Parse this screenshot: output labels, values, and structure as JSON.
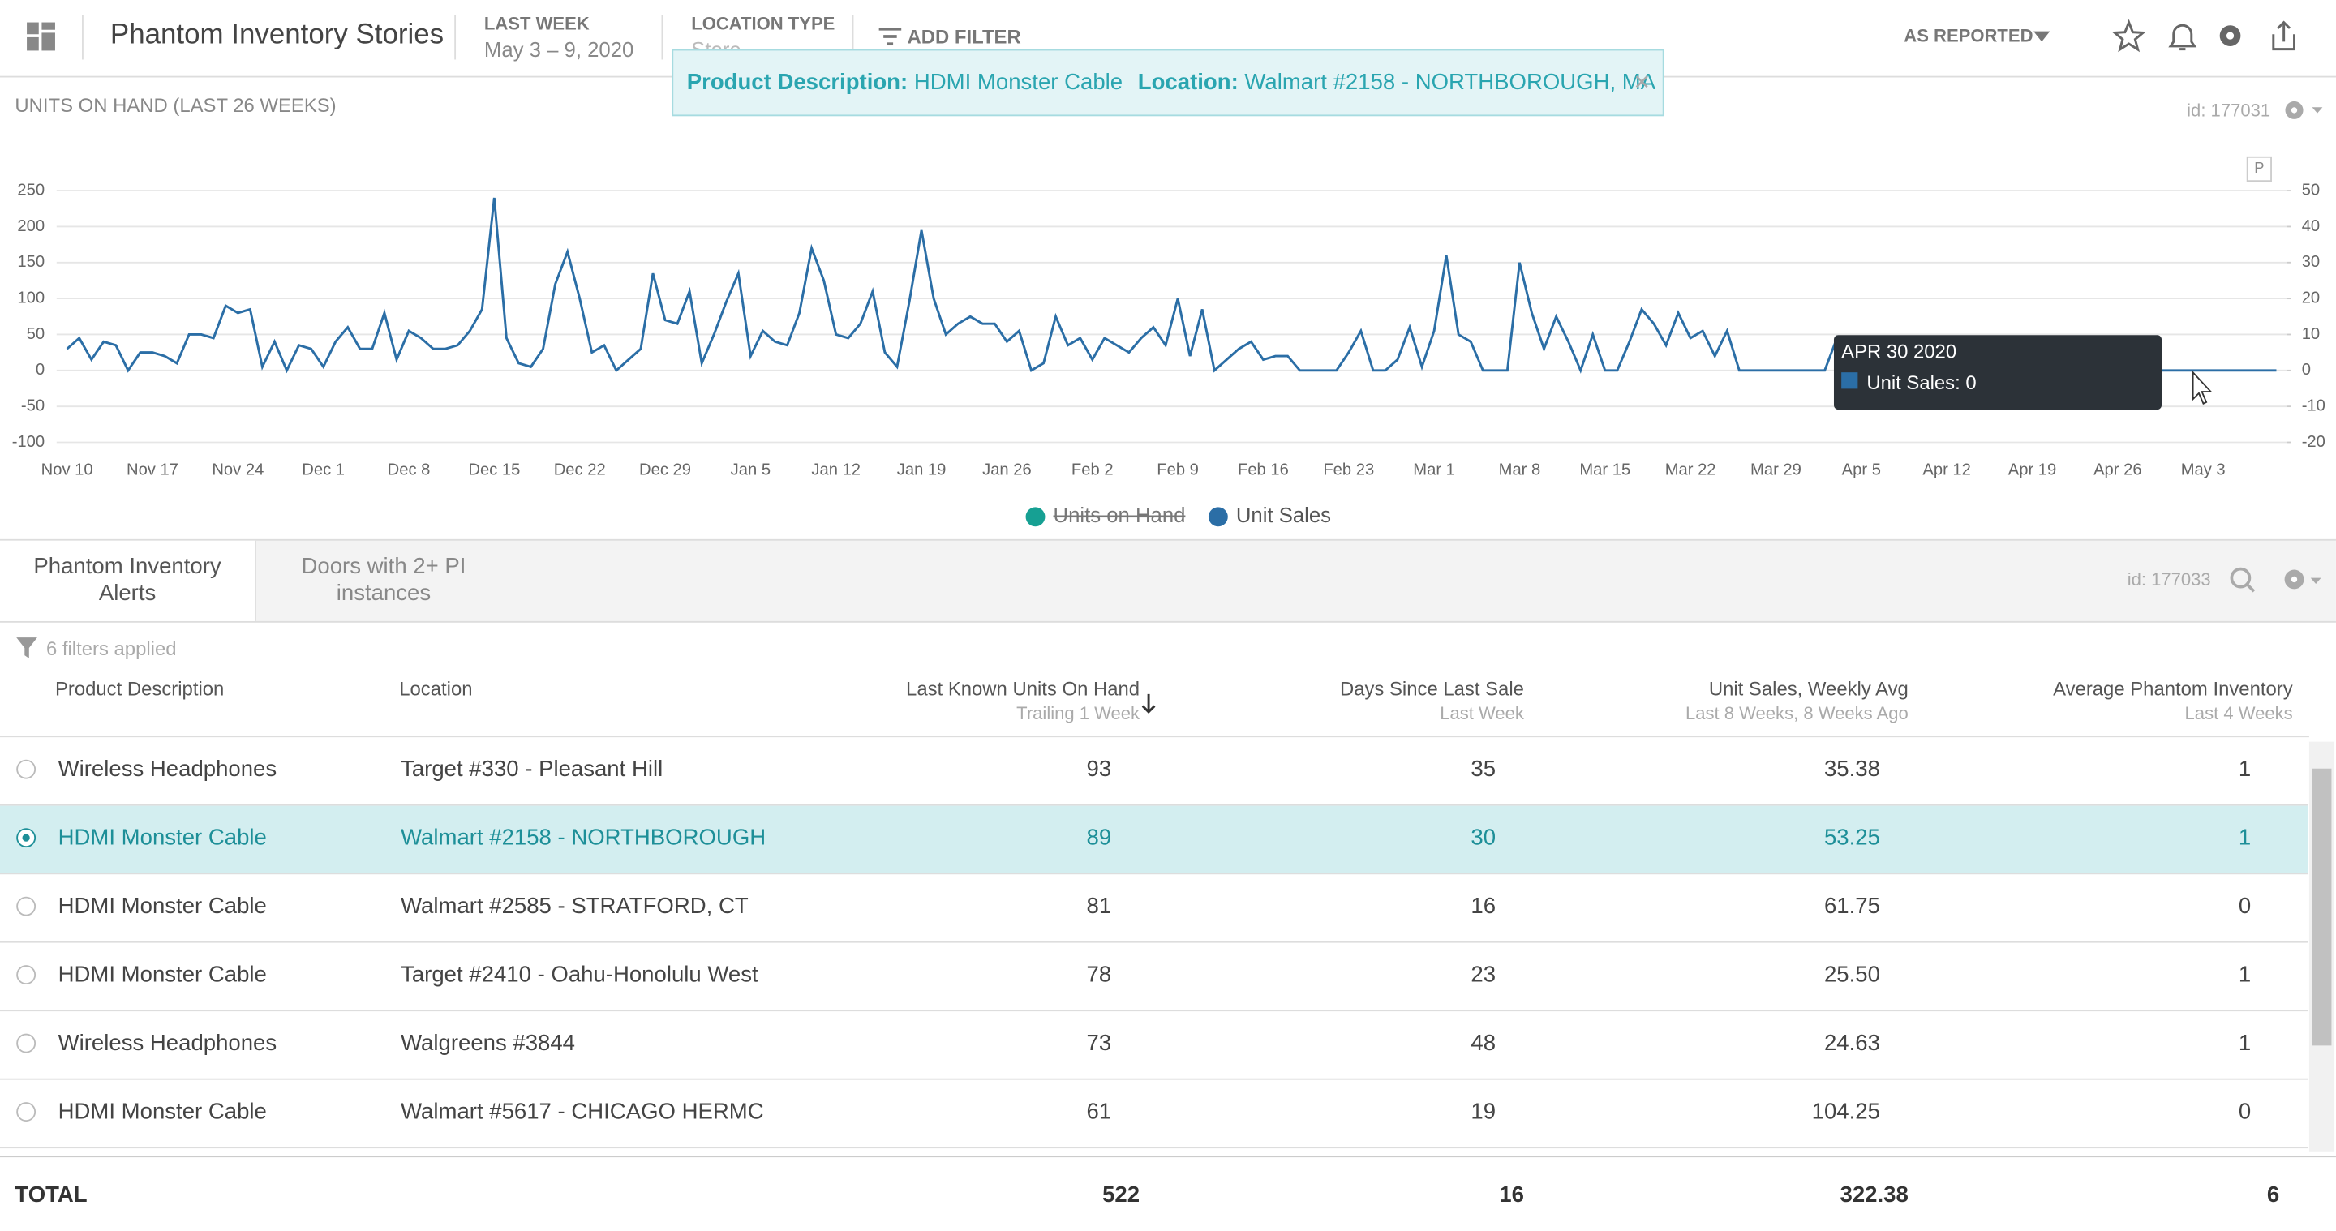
{
  "header": {
    "title": "Phantom Inventory Stories",
    "filters": [
      {
        "label": "LAST WEEK",
        "value": "May 3 – 9, 2020"
      },
      {
        "label": "LOCATION TYPE",
        "value": "Store"
      }
    ],
    "add_filter": "ADD FILTER",
    "reporting": "AS REPORTED"
  },
  "filter_banner": [
    {
      "key": "Product Description:",
      "value": "HDMI Monster Cable"
    },
    {
      "key": "Location:",
      "value": "Walmart #2158 - NORTHBOROUGH, MA"
    }
  ],
  "chart_panel": {
    "title": "UNITS ON HAND (LAST 26 WEEKS)",
    "id": "id: 177031",
    "badge": "P"
  },
  "chart_data": {
    "type": "line",
    "categories": [
      "Nov 10",
      null,
      null,
      null,
      null,
      null,
      null,
      "Nov 17",
      null,
      null,
      null,
      null,
      null,
      null,
      "Nov 24",
      null,
      null,
      null,
      null,
      null,
      null,
      "Dec 1",
      null,
      null,
      null,
      null,
      null,
      null,
      "Dec 8",
      null,
      null,
      null,
      null,
      null,
      null,
      "Dec 15",
      null,
      null,
      null,
      null,
      null,
      null,
      "Dec 22",
      null,
      null,
      null,
      null,
      null,
      null,
      "Dec 29",
      null,
      null,
      null,
      null,
      null,
      null,
      "Jan 5",
      null,
      null,
      null,
      null,
      null,
      null,
      "Jan 12",
      null,
      null,
      null,
      null,
      null,
      null,
      "Jan 19",
      null,
      null,
      null,
      null,
      null,
      null,
      "Jan 26",
      null,
      null,
      null,
      null,
      null,
      null,
      "Feb 2",
      null,
      null,
      null,
      null,
      null,
      null,
      "Feb 9",
      null,
      null,
      null,
      null,
      null,
      null,
      "Feb 16",
      null,
      null,
      null,
      null,
      null,
      null,
      "Feb 23",
      null,
      null,
      null,
      null,
      null,
      null,
      "Mar 1",
      null,
      null,
      null,
      null,
      null,
      null,
      "Mar 8",
      null,
      null,
      null,
      null,
      null,
      null,
      "Mar 15",
      null,
      null,
      null,
      null,
      null,
      null,
      "Mar 22",
      null,
      null,
      null,
      null,
      null,
      null,
      "Mar 29",
      null,
      null,
      null,
      null,
      null,
      null,
      "Apr 5",
      null,
      null,
      null,
      null,
      null,
      null,
      "Apr 12",
      null,
      null,
      null,
      null,
      null,
      null,
      "Apr 19",
      null,
      null,
      null,
      null,
      null,
      null,
      "Apr 26",
      null,
      null,
      null,
      null,
      null,
      null,
      "May 3",
      null,
      null,
      null,
      null,
      null,
      null
    ],
    "hidden_series": [
      {
        "name": "Units on Hand",
        "color": "#16a093"
      }
    ],
    "series": [
      {
        "name": "Unit Sales",
        "color": "#2b6ea6",
        "axis": "y2",
        "values": [
          6,
          9,
          3,
          8,
          7,
          0,
          5,
          5,
          4,
          2,
          10,
          10,
          9,
          18,
          16,
          17,
          1,
          8,
          0,
          7,
          6,
          1,
          8,
          12,
          6,
          6,
          16,
          3,
          11,
          9,
          6,
          6,
          7,
          11,
          17,
          48,
          9,
          2,
          1,
          6,
          24,
          33,
          20,
          5,
          7,
          0,
          3,
          6,
          27,
          14,
          13,
          22,
          2,
          10,
          19,
          27,
          4,
          11,
          8,
          7,
          16,
          34,
          25,
          10,
          9,
          13,
          22,
          5,
          1,
          19,
          39,
          20,
          10,
          13,
          15,
          13,
          13,
          8,
          11,
          0,
          2,
          15,
          7,
          9,
          3,
          9,
          7,
          5,
          9,
          12,
          7,
          20,
          4,
          17,
          0,
          3,
          6,
          8,
          3,
          4,
          4,
          0,
          0,
          0,
          0,
          5,
          11,
          0,
          0,
          3,
          12,
          1,
          11,
          32,
          10,
          8,
          0,
          0,
          0,
          30,
          16,
          6,
          15,
          8,
          0,
          10,
          0,
          0,
          8,
          17,
          13,
          7,
          16,
          9,
          11,
          4,
          11,
          0,
          0,
          0,
          0,
          0,
          0,
          0,
          0,
          9,
          2,
          3,
          0,
          0,
          0,
          0,
          0,
          0,
          0,
          0,
          0,
          0,
          0,
          0,
          0,
          0,
          0,
          0,
          0,
          0,
          0,
          0,
          0,
          0,
          0,
          0,
          0,
          0,
          0,
          0,
          0,
          0,
          0,
          0,
          0,
          0
        ]
      }
    ],
    "ylim": [
      -100,
      250
    ],
    "yticks": [
      -100,
      -50,
      0,
      50,
      100,
      150,
      200,
      250
    ],
    "y2lim": [
      -20,
      50
    ],
    "y2ticks": [
      -20,
      -10,
      0,
      10,
      20,
      30,
      40,
      50
    ],
    "grid": true,
    "tooltip": {
      "title": "APR 30 2020",
      "text": "Unit Sales: 0"
    }
  },
  "tabs": [
    "Phantom Inventory Alerts",
    "Doors with 2+ PI instances"
  ],
  "table_panel": {
    "id": "id: 177033",
    "filters_applied": "6 filters applied"
  },
  "table": {
    "columns": [
      {
        "title": "Product Description"
      },
      {
        "title": "Location"
      },
      {
        "title": "Last Known Units On Hand",
        "subtitle": "Trailing 1 Week"
      },
      {
        "title": "Days Since Last Sale",
        "subtitle": "Last Week"
      },
      {
        "title": "Unit Sales, Weekly Avg",
        "subtitle": "Last 8 Weeks, 8 Weeks Ago"
      },
      {
        "title": "Average Phantom Inventory",
        "subtitle": "Last 4 Weeks"
      }
    ],
    "sort_column": 2,
    "selected_row": 1,
    "rows": [
      [
        "Wireless Headphones",
        "Target #330 - Pleasant Hill",
        "93",
        "35",
        "35.38",
        "1"
      ],
      [
        "HDMI Monster Cable",
        "Walmart #2158 - NORTHBOROUGH",
        "89",
        "30",
        "53.25",
        "1"
      ],
      [
        "HDMI Monster Cable",
        "Walmart #2585 - STRATFORD, CT",
        "81",
        "16",
        "61.75",
        "0"
      ],
      [
        "HDMI Monster Cable",
        "Target #2410 - Oahu-Honolulu West",
        "78",
        "23",
        "25.50",
        "1"
      ],
      [
        "Wireless Headphones",
        "Walgreens #3844",
        "73",
        "48",
        "24.63",
        "1"
      ],
      [
        "HDMI Monster Cable",
        "Walmart #5617 - CHICAGO HERMC",
        "61",
        "19",
        "104.25",
        "0"
      ]
    ],
    "total": [
      "TOTAL",
      "522",
      "16",
      "322.38",
      "6"
    ]
  }
}
